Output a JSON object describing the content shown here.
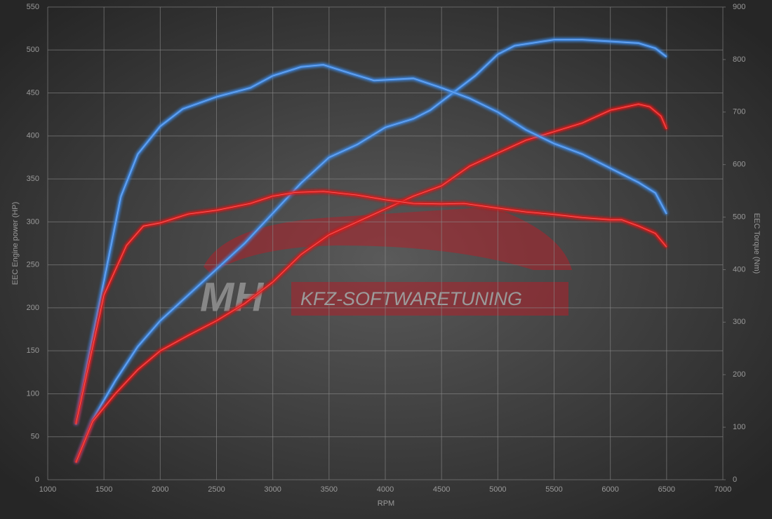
{
  "chart_data": {
    "type": "line",
    "xlabel": "RPM",
    "ylabel": "EEC Engine power (HP)",
    "y2label": "EEC Torque (Nm)",
    "watermark": [
      "MH",
      "KFZ-SOFTWARETUNING"
    ],
    "xlim": [
      1000,
      7000
    ],
    "xticks": [
      1000,
      1500,
      2000,
      2500,
      3000,
      3500,
      4000,
      4500,
      5000,
      5500,
      6000,
      6500,
      7000
    ],
    "ylim": [
      0,
      550
    ],
    "yticks": [
      0,
      50,
      100,
      150,
      200,
      250,
      300,
      350,
      400,
      450,
      500,
      550
    ],
    "y2lim": [
      0,
      900
    ],
    "y2ticks": [
      0,
      100,
      200,
      300,
      400,
      500,
      600,
      700,
      800,
      900
    ],
    "grid": true,
    "series": [
      {
        "color": "#3f8ae6",
        "axis": "y",
        "x": [
          1250,
          1400,
          1600,
          1800,
          2000,
          2250,
          2500,
          2750,
          3000,
          3250,
          3500,
          3750,
          4000,
          4250,
          4400,
          4600,
          4800,
          5000,
          5150,
          5500,
          5750,
          6000,
          6250,
          6400,
          6500
        ],
        "values": [
          20,
          70,
          115,
          155,
          185,
          215,
          245,
          275,
          310,
          345,
          375,
          390,
          410,
          420,
          430,
          450,
          470,
          495,
          505,
          512,
          512,
          510,
          508,
          502,
          492
        ]
      },
      {
        "color": "#e01c1c",
        "axis": "y",
        "x": [
          1250,
          1400,
          1600,
          1800,
          2000,
          2250,
          2500,
          2750,
          3000,
          3250,
          3500,
          3750,
          4000,
          4250,
          4500,
          4750,
          5000,
          5250,
          5500,
          5750,
          6000,
          6250,
          6350,
          6450,
          6500
        ],
        "values": [
          20,
          68,
          100,
          128,
          150,
          168,
          185,
          205,
          230,
          262,
          285,
          300,
          315,
          330,
          342,
          365,
          380,
          395,
          405,
          415,
          430,
          437,
          434,
          423,
          408
        ]
      },
      {
        "color": "#3f8ae6",
        "axis": "y2",
        "x": [
          1250,
          1350,
          1500,
          1650,
          1800,
          2000,
          2200,
          2500,
          2800,
          3000,
          3250,
          3450,
          3700,
          3900,
          4250,
          4500,
          4750,
          5000,
          5250,
          5500,
          5750,
          6000,
          6250,
          6400,
          6500
        ],
        "values": [
          105,
          219,
          379,
          539,
          620,
          673,
          706,
          729,
          746,
          769,
          786,
          790,
          773,
          760,
          764,
          746,
          726,
          700,
          666,
          640,
          620,
          593,
          566,
          546,
          506
        ]
      },
      {
        "color": "#e01c1c",
        "axis": "y2",
        "x": [
          1250,
          1500,
          1700,
          1850,
          2000,
          2250,
          2500,
          2800,
          3000,
          3200,
          3450,
          3750,
          4000,
          4250,
          4500,
          4700,
          5000,
          5250,
          5500,
          5750,
          6000,
          6100,
          6250,
          6400,
          6500
        ],
        "values": [
          106,
          352,
          446,
          483,
          489,
          506,
          513,
          526,
          540,
          547,
          549,
          542,
          533,
          526,
          525,
          526,
          517,
          510,
          505,
          499,
          495,
          495,
          483,
          469,
          443
        ]
      }
    ]
  }
}
